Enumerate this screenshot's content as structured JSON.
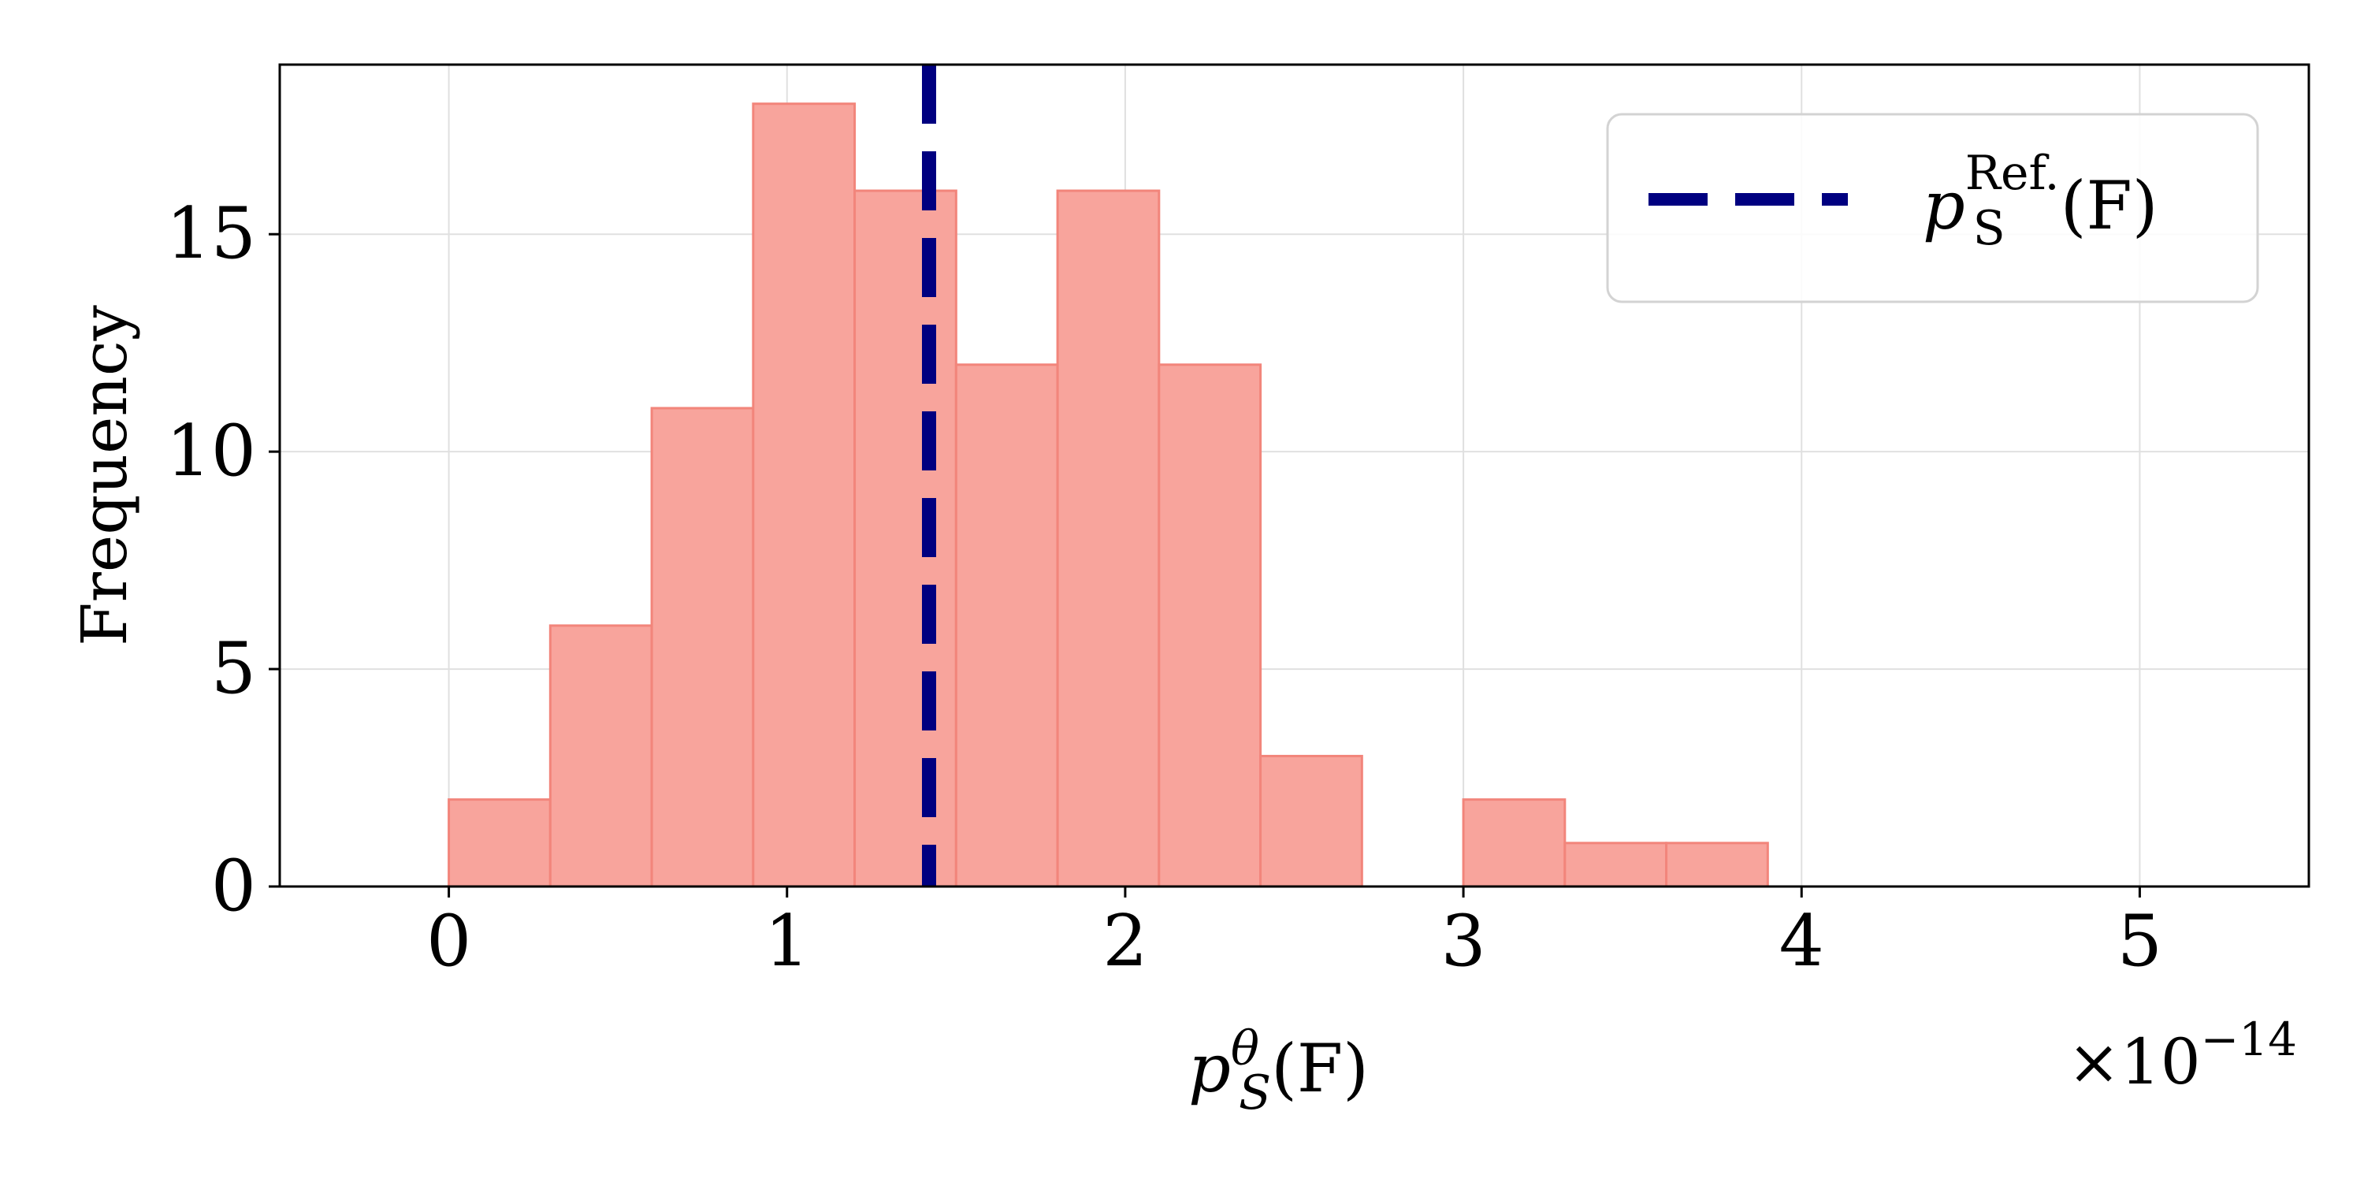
{
  "chart_data": {
    "type": "bar",
    "xlabel_main": "p",
    "xlabel_sup": "θ",
    "xlabel_sub": "S",
    "xlabel_tail": "(F)",
    "ylabel": "Frequency",
    "x_multiplier_prefix": "×10",
    "x_multiplier_exp": "−14",
    "x_scale": 1e-14,
    "xlim": [
      -0.5,
      5.5
    ],
    "ylim": [
      0,
      18.9
    ],
    "xticks": [
      0,
      1,
      2,
      3,
      4,
      5
    ],
    "xtick_labels": [
      "0",
      "1",
      "2",
      "3",
      "4",
      "5"
    ],
    "yticks": [
      0,
      5,
      10,
      15
    ],
    "ytick_labels": [
      "0",
      "5",
      "10",
      "15"
    ],
    "grid": true,
    "bins": [
      {
        "x0": 0.0,
        "x1": 0.3,
        "count": 2
      },
      {
        "x0": 0.3,
        "x1": 0.6,
        "count": 6
      },
      {
        "x0": 0.6,
        "x1": 0.9,
        "count": 11
      },
      {
        "x0": 0.9,
        "x1": 1.2,
        "count": 18
      },
      {
        "x0": 1.2,
        "x1": 1.5,
        "count": 16
      },
      {
        "x0": 1.5,
        "x1": 1.8,
        "count": 12
      },
      {
        "x0": 1.8,
        "x1": 2.1,
        "count": 16
      },
      {
        "x0": 2.1,
        "x1": 2.4,
        "count": 12
      },
      {
        "x0": 2.4,
        "x1": 2.7,
        "count": 3
      },
      {
        "x0": 2.7,
        "x1": 3.0,
        "count": 0
      },
      {
        "x0": 3.0,
        "x1": 3.3,
        "count": 2
      },
      {
        "x0": 3.3,
        "x1": 3.6,
        "count": 1
      },
      {
        "x0": 3.6,
        "x1": 3.9,
        "count": 1
      }
    ],
    "reference_line": {
      "x": 1.42,
      "legend_main": "p",
      "legend_sub": "S",
      "legend_sup": "Ref.",
      "legend_tail": "(F)"
    },
    "legend_position": "top-right",
    "colors": {
      "bar_fill": "#f8a49c",
      "bar_edge": "#f2857b",
      "reference_line": "#000080",
      "grid": "#e0e0e0",
      "axes": "#000000",
      "legend_border": "#d3d3d3"
    }
  }
}
